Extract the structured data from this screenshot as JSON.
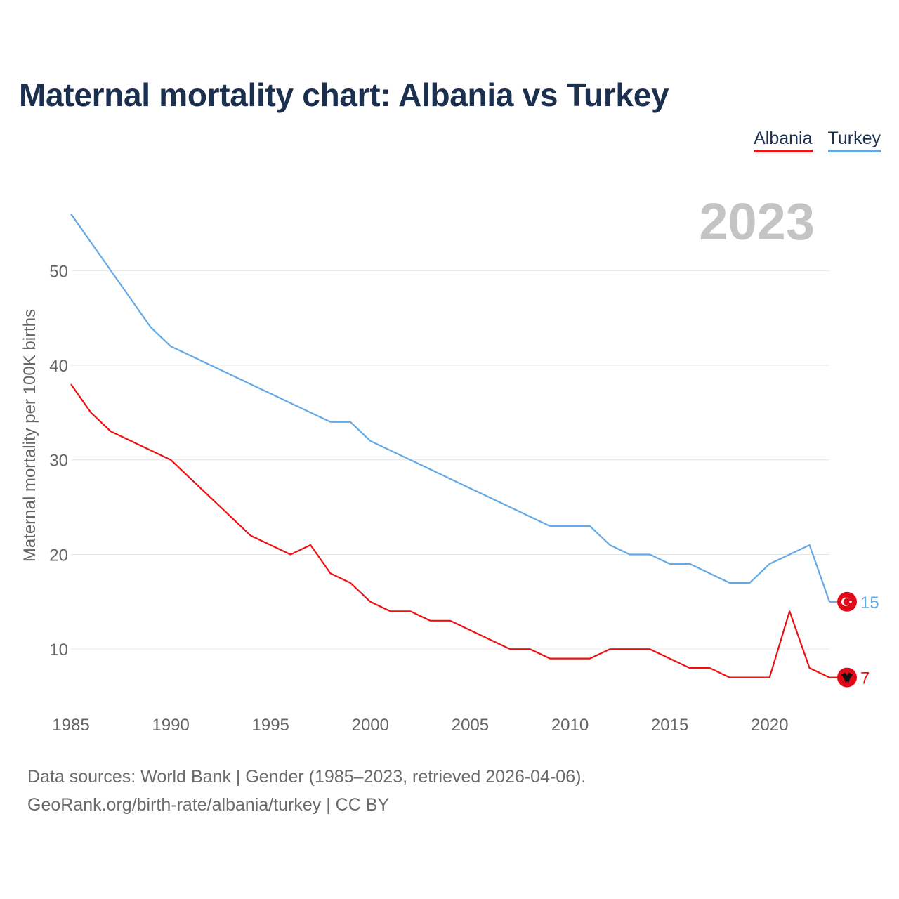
{
  "title": "Maternal mortality chart: Albania vs Turkey",
  "legend": [
    {
      "label": "Albania",
      "color": "#ee1111"
    },
    {
      "label": "Turkey",
      "color": "#64a9e6"
    }
  ],
  "footer": {
    "line1": "Data sources: World Bank | Gender (1985–2023, retrieved 2026-04-06).",
    "line2": "GeoRank.org/birth-rate/albania/turkey | CC BY"
  },
  "chart_data": {
    "type": "line",
    "title": "Maternal mortality chart: Albania vs Turkey",
    "year_label": "2023",
    "xlabel": "",
    "ylabel": "Maternal mortality per 100K births",
    "xlim": [
      1985,
      2023
    ],
    "ylim": [
      4,
      57
    ],
    "x_ticks": [
      1985,
      1990,
      1995,
      2000,
      2005,
      2010,
      2015,
      2020
    ],
    "y_ticks": [
      10,
      20,
      30,
      40,
      50
    ],
    "grid": true,
    "legend_position": "top-right",
    "x": [
      1985,
      1986,
      1987,
      1988,
      1989,
      1990,
      1991,
      1992,
      1993,
      1994,
      1995,
      1996,
      1997,
      1998,
      1999,
      2000,
      2001,
      2002,
      2003,
      2004,
      2005,
      2006,
      2007,
      2008,
      2009,
      2010,
      2011,
      2012,
      2013,
      2014,
      2015,
      2016,
      2017,
      2018,
      2019,
      2020,
      2021,
      2022,
      2023
    ],
    "series": [
      {
        "name": "Albania",
        "color": "#ee1111",
        "end_label": "7",
        "marker_icon": "albania-flag-icon",
        "values": [
          38,
          35,
          33,
          32,
          31,
          30,
          28,
          26,
          24,
          22,
          21,
          20,
          21,
          18,
          17,
          15,
          14,
          14,
          13,
          13,
          12,
          11,
          10,
          10,
          9,
          9,
          9,
          10,
          10,
          10,
          9,
          8,
          8,
          7,
          7,
          7,
          14,
          8,
          7
        ]
      },
      {
        "name": "Turkey",
        "color": "#64a9e6",
        "end_label": "15",
        "marker_icon": "turkey-flag-icon",
        "values": [
          56,
          53,
          50,
          47,
          44,
          42,
          41,
          40,
          39,
          38,
          37,
          36,
          35,
          34,
          34,
          32,
          31,
          30,
          29,
          28,
          27,
          26,
          25,
          24,
          23,
          23,
          23,
          21,
          20,
          20,
          19,
          19,
          18,
          17,
          17,
          19,
          20,
          21,
          15
        ]
      }
    ]
  }
}
